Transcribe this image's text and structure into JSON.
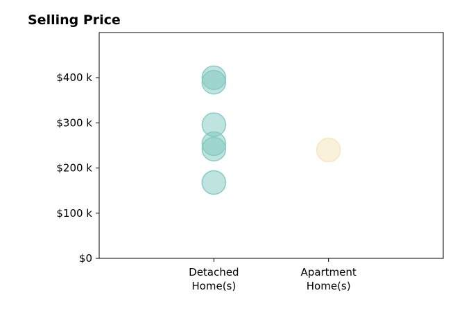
{
  "chart_data": {
    "type": "scatter",
    "title": "Selling Price",
    "xlabel": "",
    "ylabel": "",
    "categories": [
      "Detached\nHome(s)",
      "Apartment\nHome(s)"
    ],
    "y_ticks": [
      0,
      100000,
      200000,
      300000,
      400000
    ],
    "y_tick_labels": [
      "$0",
      "$100 k",
      "$200 k",
      "$300 k",
      "$400 k"
    ],
    "ylim": [
      0,
      500000
    ],
    "xlim": [
      0,
      3
    ],
    "grid": false,
    "series": [
      {
        "category": "Detached\nHome(s)",
        "color": "#7fc7bf",
        "values": [
          400000,
          390000,
          296000,
          254000,
          242000,
          168000
        ]
      },
      {
        "category": "Apartment\nHome(s)",
        "color": "#f6e3b8",
        "values": [
          240000
        ]
      }
    ]
  }
}
